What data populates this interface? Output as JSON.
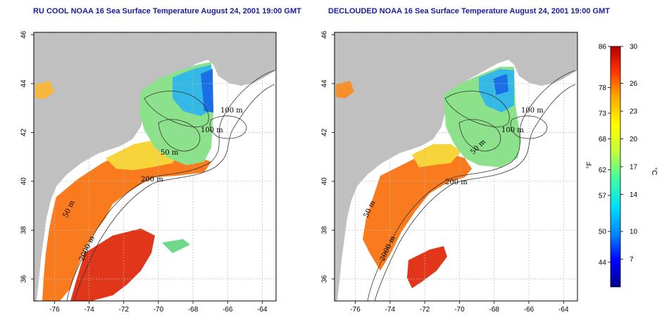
{
  "panels": [
    {
      "id": "left",
      "title": "RU COOL NOAA 16 Sea Surface Temperature August 24, 2001 19:00 GMT",
      "contour_labels": [
        "100 m",
        "100 m",
        "50 m",
        "200 m",
        "50 m",
        "2000 m"
      ]
    },
    {
      "id": "right",
      "title": "DECLOUDED NOAA 16 Sea Surface Temperature August 24, 2001 19:00 GMT",
      "contour_labels": [
        "100 m",
        "100 m",
        "50 m",
        "200 m",
        "50 m",
        "2000 m"
      ]
    }
  ],
  "axes": {
    "x_ticks": [
      "-76",
      "-74",
      "-72",
      "-70",
      "-68",
      "-66",
      "-64"
    ],
    "y_ticks": [
      "36",
      "38",
      "40",
      "42",
      "44",
      "46"
    ],
    "x_range": [
      -77.2,
      -63.2
    ],
    "y_range": [
      35.1,
      46.1
    ]
  },
  "colorbar": {
    "f_unit": "°F",
    "c_unit": "°C",
    "f_ticks": [
      "86",
      "78",
      "73",
      "68",
      "62",
      "57",
      "50",
      "44"
    ],
    "c_ticks": [
      "30",
      "26",
      "23",
      "20",
      "17",
      "14",
      "10",
      "7"
    ],
    "c_range": [
      4,
      30
    ],
    "colors": [
      "#00008b",
      "#0000ff",
      "#0088ff",
      "#00ddff",
      "#40ff9f",
      "#c0ff40",
      "#ffff00",
      "#ffa000",
      "#ff3000",
      "#b00000"
    ]
  },
  "map_colors": {
    "land": "#c0c0c0",
    "ocean": "#ffffff",
    "grid": "#bbbbbb",
    "contour": "#333333"
  }
}
